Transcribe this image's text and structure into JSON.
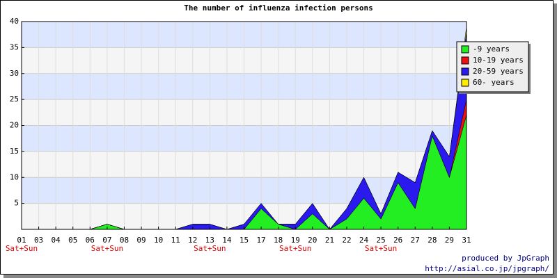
{
  "chart_data": {
    "type": "stacked_area",
    "title": "The number of influenza infection persons",
    "categories": [
      "01",
      "03",
      "04",
      "05",
      "06",
      "07",
      "08",
      "09",
      "10",
      "11",
      "12",
      "13",
      "14",
      "15",
      "17",
      "18",
      "19",
      "20",
      "21",
      "22",
      "24",
      "25",
      "26",
      "27",
      "28",
      "29",
      "31"
    ],
    "x_sublabels": [
      "Sat+Sun",
      null,
      null,
      null,
      null,
      "Sat+Sun",
      null,
      null,
      null,
      null,
      null,
      "Sat+Sun",
      null,
      null,
      null,
      null,
      "Sat+Sun",
      null,
      null,
      null,
      null,
      "Sat+Sun",
      null,
      null,
      null,
      null,
      null
    ],
    "series": [
      {
        "name": "-9 years",
        "color": "#22ee22",
        "values": [
          0,
          0,
          0,
          0,
          0,
          1,
          0,
          0,
          0,
          0,
          0,
          0,
          0,
          0,
          4,
          1,
          0,
          3,
          0,
          2,
          6,
          2,
          9,
          4,
          18,
          10,
          22
        ]
      },
      {
        "name": "10-19 years",
        "color": "#ee1111",
        "values": [
          0,
          0,
          0,
          0,
          0,
          0,
          0,
          0,
          0,
          0,
          0,
          0,
          0,
          0,
          0,
          0,
          0,
          0,
          0,
          0,
          0,
          0,
          0,
          0,
          0,
          0,
          3
        ]
      },
      {
        "name": "20-59 years",
        "color": "#2a1aee",
        "values": [
          0,
          0,
          0,
          0,
          0,
          0,
          0,
          0,
          0,
          0,
          1,
          1,
          0,
          1,
          1,
          0,
          1,
          2,
          0,
          2,
          4,
          1,
          2,
          5,
          1,
          4,
          13
        ]
      },
      {
        "name": "60- years",
        "color": "#ffee00",
        "values": [
          0,
          0,
          0,
          0,
          0,
          0,
          0,
          0,
          0,
          0,
          0,
          0,
          0,
          0,
          0,
          0,
          0,
          0,
          0,
          0,
          0,
          0,
          0,
          0,
          0,
          0,
          1
        ]
      }
    ],
    "ylim": [
      0,
      40
    ],
    "yticks": [
      5,
      10,
      15,
      20,
      25,
      30,
      35,
      40
    ],
    "grid": true,
    "legend": "upper right",
    "footer": [
      "produced by JpGraph",
      "http://asial.co.jp/jpgraph/"
    ]
  }
}
